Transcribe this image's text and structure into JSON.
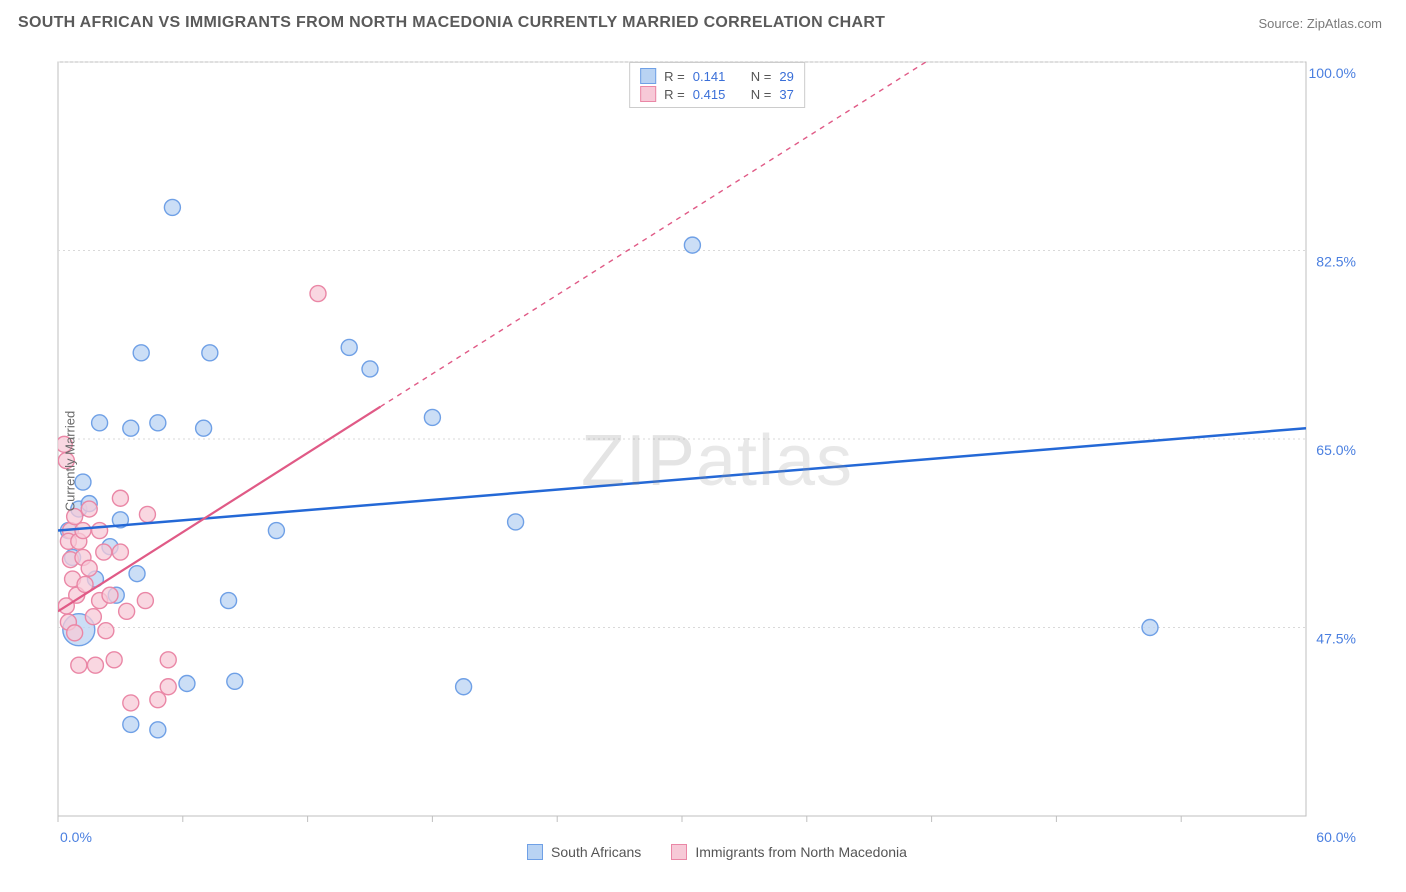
{
  "title": "SOUTH AFRICAN VS IMMIGRANTS FROM NORTH MACEDONIA CURRENTLY MARRIED CORRELATION CHART",
  "source": "Source: ZipAtlas.com",
  "watermark": "ZIPatlas",
  "chart": {
    "type": "scatter",
    "ylabel": "Currently Married",
    "xlim": [
      0,
      60
    ],
    "ylim": [
      30,
      100
    ],
    "y_gridlines": [
      47.5,
      65.0,
      82.5,
      100.0
    ],
    "y_gridline_labels": [
      "47.5%",
      "65.0%",
      "82.5%",
      "100.0%"
    ],
    "x_ticks": [
      0,
      6,
      12,
      18,
      24,
      30,
      36,
      42,
      48,
      54
    ],
    "x_axis_labels": {
      "min": "0.0%",
      "max": "60.0%"
    },
    "grid_color": "#d9d9d9",
    "axis_color": "#bfbfbf",
    "axis_label_color": "#4a7fe0",
    "background_color": "#ffffff",
    "series": [
      {
        "id": "south_africans",
        "label": "South Africans",
        "color_fill": "#b9d3f3",
        "color_stroke": "#6fa0e6",
        "marker_radius": 8,
        "trend": {
          "x1": 0,
          "y1": 56.5,
          "x2": 60,
          "y2": 66.0,
          "stroke": "#2468d6",
          "width": 2.5,
          "dash": "none"
        },
        "R": "0.141",
        "N": "29",
        "points": [
          {
            "x": 1.0,
            "y": 47.3,
            "r": 16
          },
          {
            "x": 0.5,
            "y": 56.5
          },
          {
            "x": 0.7,
            "y": 54.0
          },
          {
            "x": 1.0,
            "y": 58.5
          },
          {
            "x": 1.5,
            "y": 59.0
          },
          {
            "x": 1.8,
            "y": 52.0
          },
          {
            "x": 2.0,
            "y": 66.5
          },
          {
            "x": 1.2,
            "y": 61.0
          },
          {
            "x": 2.5,
            "y": 55.0
          },
          {
            "x": 2.8,
            "y": 50.5
          },
          {
            "x": 3.0,
            "y": 57.5
          },
          {
            "x": 3.8,
            "y": 52.5
          },
          {
            "x": 3.5,
            "y": 66.0
          },
          {
            "x": 4.0,
            "y": 73.0
          },
          {
            "x": 4.8,
            "y": 66.5
          },
          {
            "x": 5.5,
            "y": 86.5
          },
          {
            "x": 6.2,
            "y": 42.3
          },
          {
            "x": 7.0,
            "y": 66.0
          },
          {
            "x": 7.3,
            "y": 73.0
          },
          {
            "x": 8.2,
            "y": 50.0
          },
          {
            "x": 8.5,
            "y": 42.5
          },
          {
            "x": 3.5,
            "y": 38.5
          },
          {
            "x": 4.8,
            "y": 38.0
          },
          {
            "x": 10.5,
            "y": 56.5
          },
          {
            "x": 14.0,
            "y": 73.5
          },
          {
            "x": 15.0,
            "y": 71.5
          },
          {
            "x": 18.0,
            "y": 67.0
          },
          {
            "x": 19.5,
            "y": 42.0
          },
          {
            "x": 22.0,
            "y": 57.3
          },
          {
            "x": 30.5,
            "y": 83.0
          },
          {
            "x": 52.5,
            "y": 47.5
          }
        ]
      },
      {
        "id": "north_macedonia",
        "label": "Immigrants from North Macedonia",
        "color_fill": "#f7c9d7",
        "color_stroke": "#ea87a6",
        "marker_radius": 8,
        "trend": {
          "x1": 0,
          "y1": 49.0,
          "x2": 15.5,
          "y2": 68.0,
          "stroke": "#e05a86",
          "width": 2.2,
          "dash": "none",
          "extend_dash_to": {
            "x": 45,
            "y": 104
          },
          "dash_pattern": "5 5"
        },
        "R": "0.415",
        "N": "37",
        "points": [
          {
            "x": 0.3,
            "y": 64.5
          },
          {
            "x": 0.4,
            "y": 63.0
          },
          {
            "x": 0.6,
            "y": 56.5
          },
          {
            "x": 0.5,
            "y": 55.5
          },
          {
            "x": 0.6,
            "y": 53.8
          },
          {
            "x": 0.8,
            "y": 57.8
          },
          {
            "x": 0.7,
            "y": 52.0
          },
          {
            "x": 0.9,
            "y": 50.5
          },
          {
            "x": 0.4,
            "y": 49.5
          },
          {
            "x": 0.5,
            "y": 48.0
          },
          {
            "x": 0.8,
            "y": 47.0
          },
          {
            "x": 1.0,
            "y": 55.5
          },
          {
            "x": 1.2,
            "y": 56.5
          },
          {
            "x": 1.2,
            "y": 54.0
          },
          {
            "x": 1.3,
            "y": 51.5
          },
          {
            "x": 1.5,
            "y": 58.5
          },
          {
            "x": 1.5,
            "y": 53.0
          },
          {
            "x": 1.7,
            "y": 48.5
          },
          {
            "x": 1.8,
            "y": 44.0
          },
          {
            "x": 2.0,
            "y": 56.5
          },
          {
            "x": 2.0,
            "y": 50.0
          },
          {
            "x": 2.2,
            "y": 54.5
          },
          {
            "x": 2.3,
            "y": 47.2
          },
          {
            "x": 2.5,
            "y": 50.5
          },
          {
            "x": 2.7,
            "y": 44.5
          },
          {
            "x": 3.0,
            "y": 59.5
          },
          {
            "x": 3.0,
            "y": 54.5
          },
          {
            "x": 3.3,
            "y": 49.0
          },
          {
            "x": 3.5,
            "y": 40.5
          },
          {
            "x": 4.2,
            "y": 50.0
          },
          {
            "x": 4.3,
            "y": 58.0
          },
          {
            "x": 5.3,
            "y": 44.5
          },
          {
            "x": 5.3,
            "y": 42.0
          },
          {
            "x": 4.8,
            "y": 40.8
          },
          {
            "x": 1.0,
            "y": 44.0
          },
          {
            "x": 12.5,
            "y": 78.5
          }
        ]
      }
    ]
  },
  "legend_top": [
    {
      "swatch_fill": "#b9d3f3",
      "swatch_stroke": "#6fa0e6",
      "r_label": "R =",
      "r_val": "0.141",
      "n_label": "N =",
      "n_val": "29"
    },
    {
      "swatch_fill": "#f7c9d7",
      "swatch_stroke": "#ea87a6",
      "r_label": "R =",
      "r_val": "0.415",
      "n_label": "N =",
      "n_val": "37"
    }
  ],
  "legend_bottom": [
    {
      "swatch_fill": "#b9d3f3",
      "swatch_stroke": "#6fa0e6",
      "label": "South Africans"
    },
    {
      "swatch_fill": "#f7c9d7",
      "swatch_stroke": "#ea87a6",
      "label": "Immigrants from North Macedonia"
    }
  ]
}
